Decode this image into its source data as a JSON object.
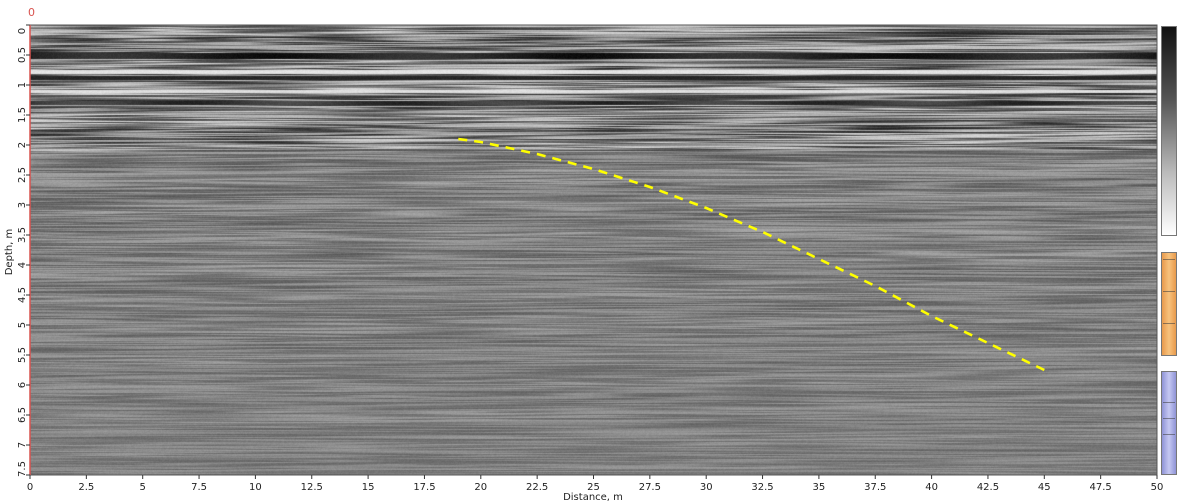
{
  "chart_data": {
    "type": "radargram",
    "corner_marker": "0",
    "xlabel": "Distance, m",
    "ylabel": "Depth, m",
    "xlim": [
      0,
      50
    ],
    "ylim": [
      7.5,
      0
    ],
    "x_ticks": [
      "0",
      "2.5",
      "5",
      "7.5",
      "10",
      "12.5",
      "15",
      "17.5",
      "20",
      "22.5",
      "25",
      "27.5",
      "30",
      "32.5",
      "35",
      "37.5",
      "40",
      "42.5",
      "45",
      "47.5",
      "50"
    ],
    "y_ticks": [
      "0",
      "0.5",
      "1",
      "1.5",
      "2",
      "2.5",
      "3",
      "3.5",
      "4",
      "4.5",
      "5",
      "5.5",
      "6",
      "6.5",
      "7",
      "7.5"
    ],
    "annotation_curve": {
      "style": "dashed",
      "color": "#ffff00",
      "x": [
        19,
        20,
        22.5,
        25,
        27.5,
        30,
        32.5,
        35,
        37.5,
        40,
        42.5,
        45
      ],
      "y": [
        1.9,
        1.95,
        2.15,
        2.4,
        2.7,
        3.05,
        3.45,
        3.9,
        4.35,
        4.85,
        5.3,
        5.75
      ]
    },
    "colorbar": {
      "top_color": "#111111",
      "bottom_color": "#ffffff"
    }
  }
}
